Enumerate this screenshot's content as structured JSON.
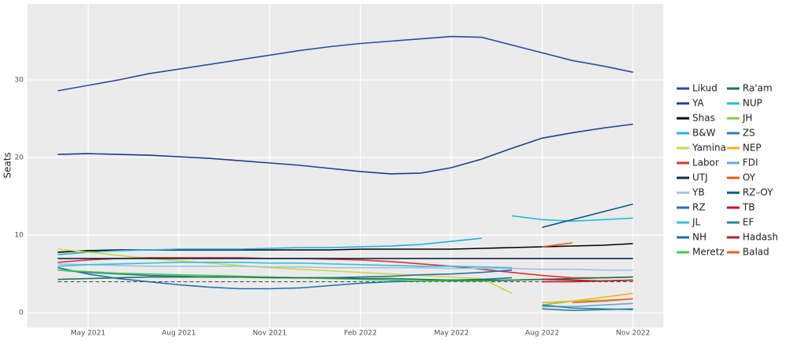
{
  "chart_data": {
    "type": "line",
    "y_label": "Seats",
    "x": [
      "Apr 2021",
      "May 2021",
      "Jun 2021",
      "Jul 2021",
      "Aug 2021",
      "Sep 2021",
      "Oct 2021",
      "Nov 2021",
      "Dec 2021",
      "Jan 2022",
      "Feb 2022",
      "Mar 2022",
      "Apr 2022",
      "May 2022",
      "Jun 2022",
      "Jul 2022",
      "Aug 2022",
      "Sep 2022",
      "Oct 2022",
      "Nov 2022"
    ],
    "xlim": [
      "Mar 2021",
      "Dec 2022"
    ],
    "xticks": [
      "May 2021",
      "Aug 2021",
      "Nov 2021",
      "Feb 2022",
      "May 2022",
      "Aug 2022",
      "Nov 2022"
    ],
    "ylim": [
      -1.9,
      39.8
    ],
    "yticks": [
      0,
      10,
      20,
      30
    ],
    "grid": true,
    "threshold": 4,
    "legend_position": "right",
    "series": [
      {
        "name": "Likud",
        "color": "#2b4c9c",
        "values": [
          28.6,
          29.3,
          30,
          30.8,
          31.4,
          32,
          32.6,
          33.2,
          33.8,
          34.3,
          34.7,
          35,
          35.3,
          35.6,
          35.5,
          34.5,
          33.5,
          32.5,
          31.8,
          31
        ]
      },
      {
        "name": "YA",
        "color": "#1f3f8f",
        "values": [
          20.4,
          20.5,
          20.4,
          20.3,
          20.1,
          19.9,
          19.6,
          19.3,
          19,
          18.6,
          18.2,
          17.9,
          18,
          18.7,
          19.8,
          21.2,
          22.5,
          23.2,
          23.8,
          24.3
        ]
      },
      {
        "name": "Shas",
        "color": "#000000",
        "values": [
          7.8,
          8,
          8.1,
          8.1,
          8.1,
          8.1,
          8.1,
          8.1,
          8.1,
          8.1,
          8.2,
          8.2,
          8.2,
          8.2,
          8.3,
          8.4,
          8.5,
          8.6,
          8.7,
          8.9
        ]
      },
      {
        "name": "B&W",
        "color": "#1ab0e8",
        "values": [
          7.5,
          7.8,
          8,
          8.1,
          8.2,
          8.2,
          8.2,
          8.3,
          8.4,
          8.4,
          8.5,
          8.6,
          8.8,
          9.2,
          9.6,
          null,
          null,
          null,
          null,
          null
        ]
      },
      {
        "name": "Yamina",
        "color": "#c8dc3c",
        "values": [
          8.2,
          7.8,
          7.4,
          7,
          6.7,
          6.4,
          6.1,
          5.8,
          5.6,
          5.4,
          5.2,
          5,
          4.8,
          4.6,
          4.4,
          2.5,
          null,
          null,
          null,
          null
        ]
      },
      {
        "name": "Labor",
        "color": "#e03030",
        "values": [
          6.5,
          6.8,
          7,
          7.1,
          7.1,
          7.1,
          7.1,
          7,
          7,
          6.9,
          6.8,
          6.6,
          6.3,
          6,
          5.6,
          5.2,
          4.8,
          4.5,
          4.5,
          4.6
        ]
      },
      {
        "name": "UTJ",
        "color": "#0b2a4a",
        "values": [
          7,
          7,
          7,
          7,
          7,
          7,
          7,
          7,
          7,
          7,
          7,
          7,
          7,
          7,
          7,
          7,
          7,
          7,
          7,
          7
        ]
      },
      {
        "name": "YB",
        "color": "#a7bfe0",
        "values": [
          6.3,
          6.2,
          6.1,
          6,
          6,
          6,
          6,
          5.9,
          5.9,
          5.8,
          5.8,
          5.8,
          5.8,
          5.7,
          5.7,
          5.7,
          5.6,
          5.6,
          5.5,
          5.5
        ]
      },
      {
        "name": "RZ",
        "color": "#2f6bb0",
        "values": [
          5.5,
          5.2,
          5,
          4.8,
          4.7,
          4.6,
          4.6,
          4.6,
          4.5,
          4.5,
          4.6,
          4.7,
          4.9,
          5,
          5.2,
          5.5,
          null,
          null,
          null,
          null
        ]
      },
      {
        "name": "JL",
        "color": "#2ec3e0",
        "values": [
          6,
          6.2,
          6.3,
          6.4,
          6.5,
          6.5,
          6.5,
          6.4,
          6.4,
          6.3,
          6.2,
          6.1,
          6,
          6,
          5.9,
          5.8,
          null,
          null,
          null,
          null
        ]
      },
      {
        "name": "NH",
        "color": "#1a6fb3",
        "values": [
          5.8,
          5,
          4.4,
          4,
          3.6,
          3.3,
          3.1,
          3.1,
          3.2,
          3.5,
          3.8,
          4,
          4.1,
          4.2,
          4.3,
          4.5,
          null,
          null,
          null,
          null
        ]
      },
      {
        "name": "Meretz",
        "color": "#3ecf4a",
        "values": [
          5.5,
          5.3,
          5.1,
          5,
          4.9,
          4.8,
          4.7,
          4.6,
          4.5,
          4.4,
          4.3,
          4.2,
          4.1,
          4.1,
          4.1,
          4.2,
          4.3,
          4.4,
          4.5,
          4.6
        ]
      },
      {
        "name": "Ra'am",
        "color": "#1f7a4a",
        "values": [
          4.3,
          4.4,
          4.5,
          4.6,
          4.6,
          4.6,
          4.6,
          4.5,
          4.5,
          4.5,
          4.4,
          4.4,
          4.3,
          4.2,
          4.2,
          4.2,
          4.3,
          4.4,
          4.5,
          4.6
        ]
      },
      {
        "name": "NUP",
        "color": "#1ec0d8",
        "values": [
          null,
          null,
          null,
          null,
          null,
          null,
          null,
          null,
          null,
          null,
          null,
          null,
          null,
          null,
          null,
          12.5,
          12,
          11.8,
          12,
          12.2
        ]
      },
      {
        "name": "JH",
        "color": "#8cc63f",
        "values": [
          null,
          null,
          null,
          null,
          null,
          null,
          null,
          null,
          null,
          null,
          null,
          null,
          null,
          null,
          null,
          null,
          1,
          1.5,
          1.6,
          1.8
        ]
      },
      {
        "name": "ZS",
        "color": "#2d7fa8",
        "values": [
          null,
          null,
          null,
          null,
          null,
          null,
          null,
          null,
          null,
          null,
          null,
          null,
          null,
          null,
          null,
          null,
          0.5,
          0.3,
          0.4,
          0.5
        ]
      },
      {
        "name": "NEP",
        "color": "#f7b21b",
        "values": [
          null,
          null,
          null,
          null,
          null,
          null,
          null,
          null,
          null,
          null,
          null,
          null,
          null,
          null,
          null,
          null,
          1.3,
          1.5,
          2,
          2.5
        ]
      },
      {
        "name": "FDI",
        "color": "#6ba6d6",
        "values": [
          null,
          null,
          null,
          null,
          null,
          null,
          null,
          null,
          null,
          null,
          null,
          null,
          null,
          null,
          null,
          null,
          0.8,
          0.8,
          1,
          1.2
        ]
      },
      {
        "name": "OY",
        "color": "#e8590c",
        "values": [
          null,
          null,
          null,
          null,
          null,
          null,
          null,
          null,
          null,
          null,
          null,
          null,
          null,
          null,
          null,
          null,
          8.5,
          9,
          null,
          null
        ]
      },
      {
        "name": "RZ–OY",
        "color": "#0a5a8a",
        "values": [
          null,
          null,
          null,
          null,
          null,
          null,
          null,
          null,
          null,
          null,
          null,
          null,
          null,
          null,
          null,
          null,
          11,
          12,
          13,
          14
        ]
      },
      {
        "name": "TB",
        "color": "#c0152a",
        "values": [
          null,
          null,
          null,
          null,
          null,
          null,
          null,
          null,
          null,
          null,
          null,
          null,
          null,
          null,
          null,
          null,
          4.3,
          4.2,
          4.1,
          4.2
        ]
      },
      {
        "name": "EF",
        "color": "#2289a8",
        "values": [
          null,
          null,
          null,
          null,
          null,
          null,
          null,
          null,
          null,
          null,
          null,
          null,
          null,
          null,
          null,
          null,
          1,
          0.6,
          0.5,
          0.4
        ]
      },
      {
        "name": "Hadash",
        "color": "#b82030",
        "values": [
          null,
          null,
          null,
          null,
          null,
          null,
          null,
          null,
          null,
          null,
          null,
          null,
          null,
          null,
          null,
          null,
          4,
          4,
          4.1,
          4.2
        ]
      },
      {
        "name": "Balad",
        "color": "#f06020",
        "values": [
          null,
          null,
          null,
          null,
          null,
          null,
          null,
          null,
          null,
          null,
          null,
          null,
          null,
          null,
          null,
          null,
          null,
          1.3,
          1.5,
          1.8
        ]
      }
    ]
  }
}
